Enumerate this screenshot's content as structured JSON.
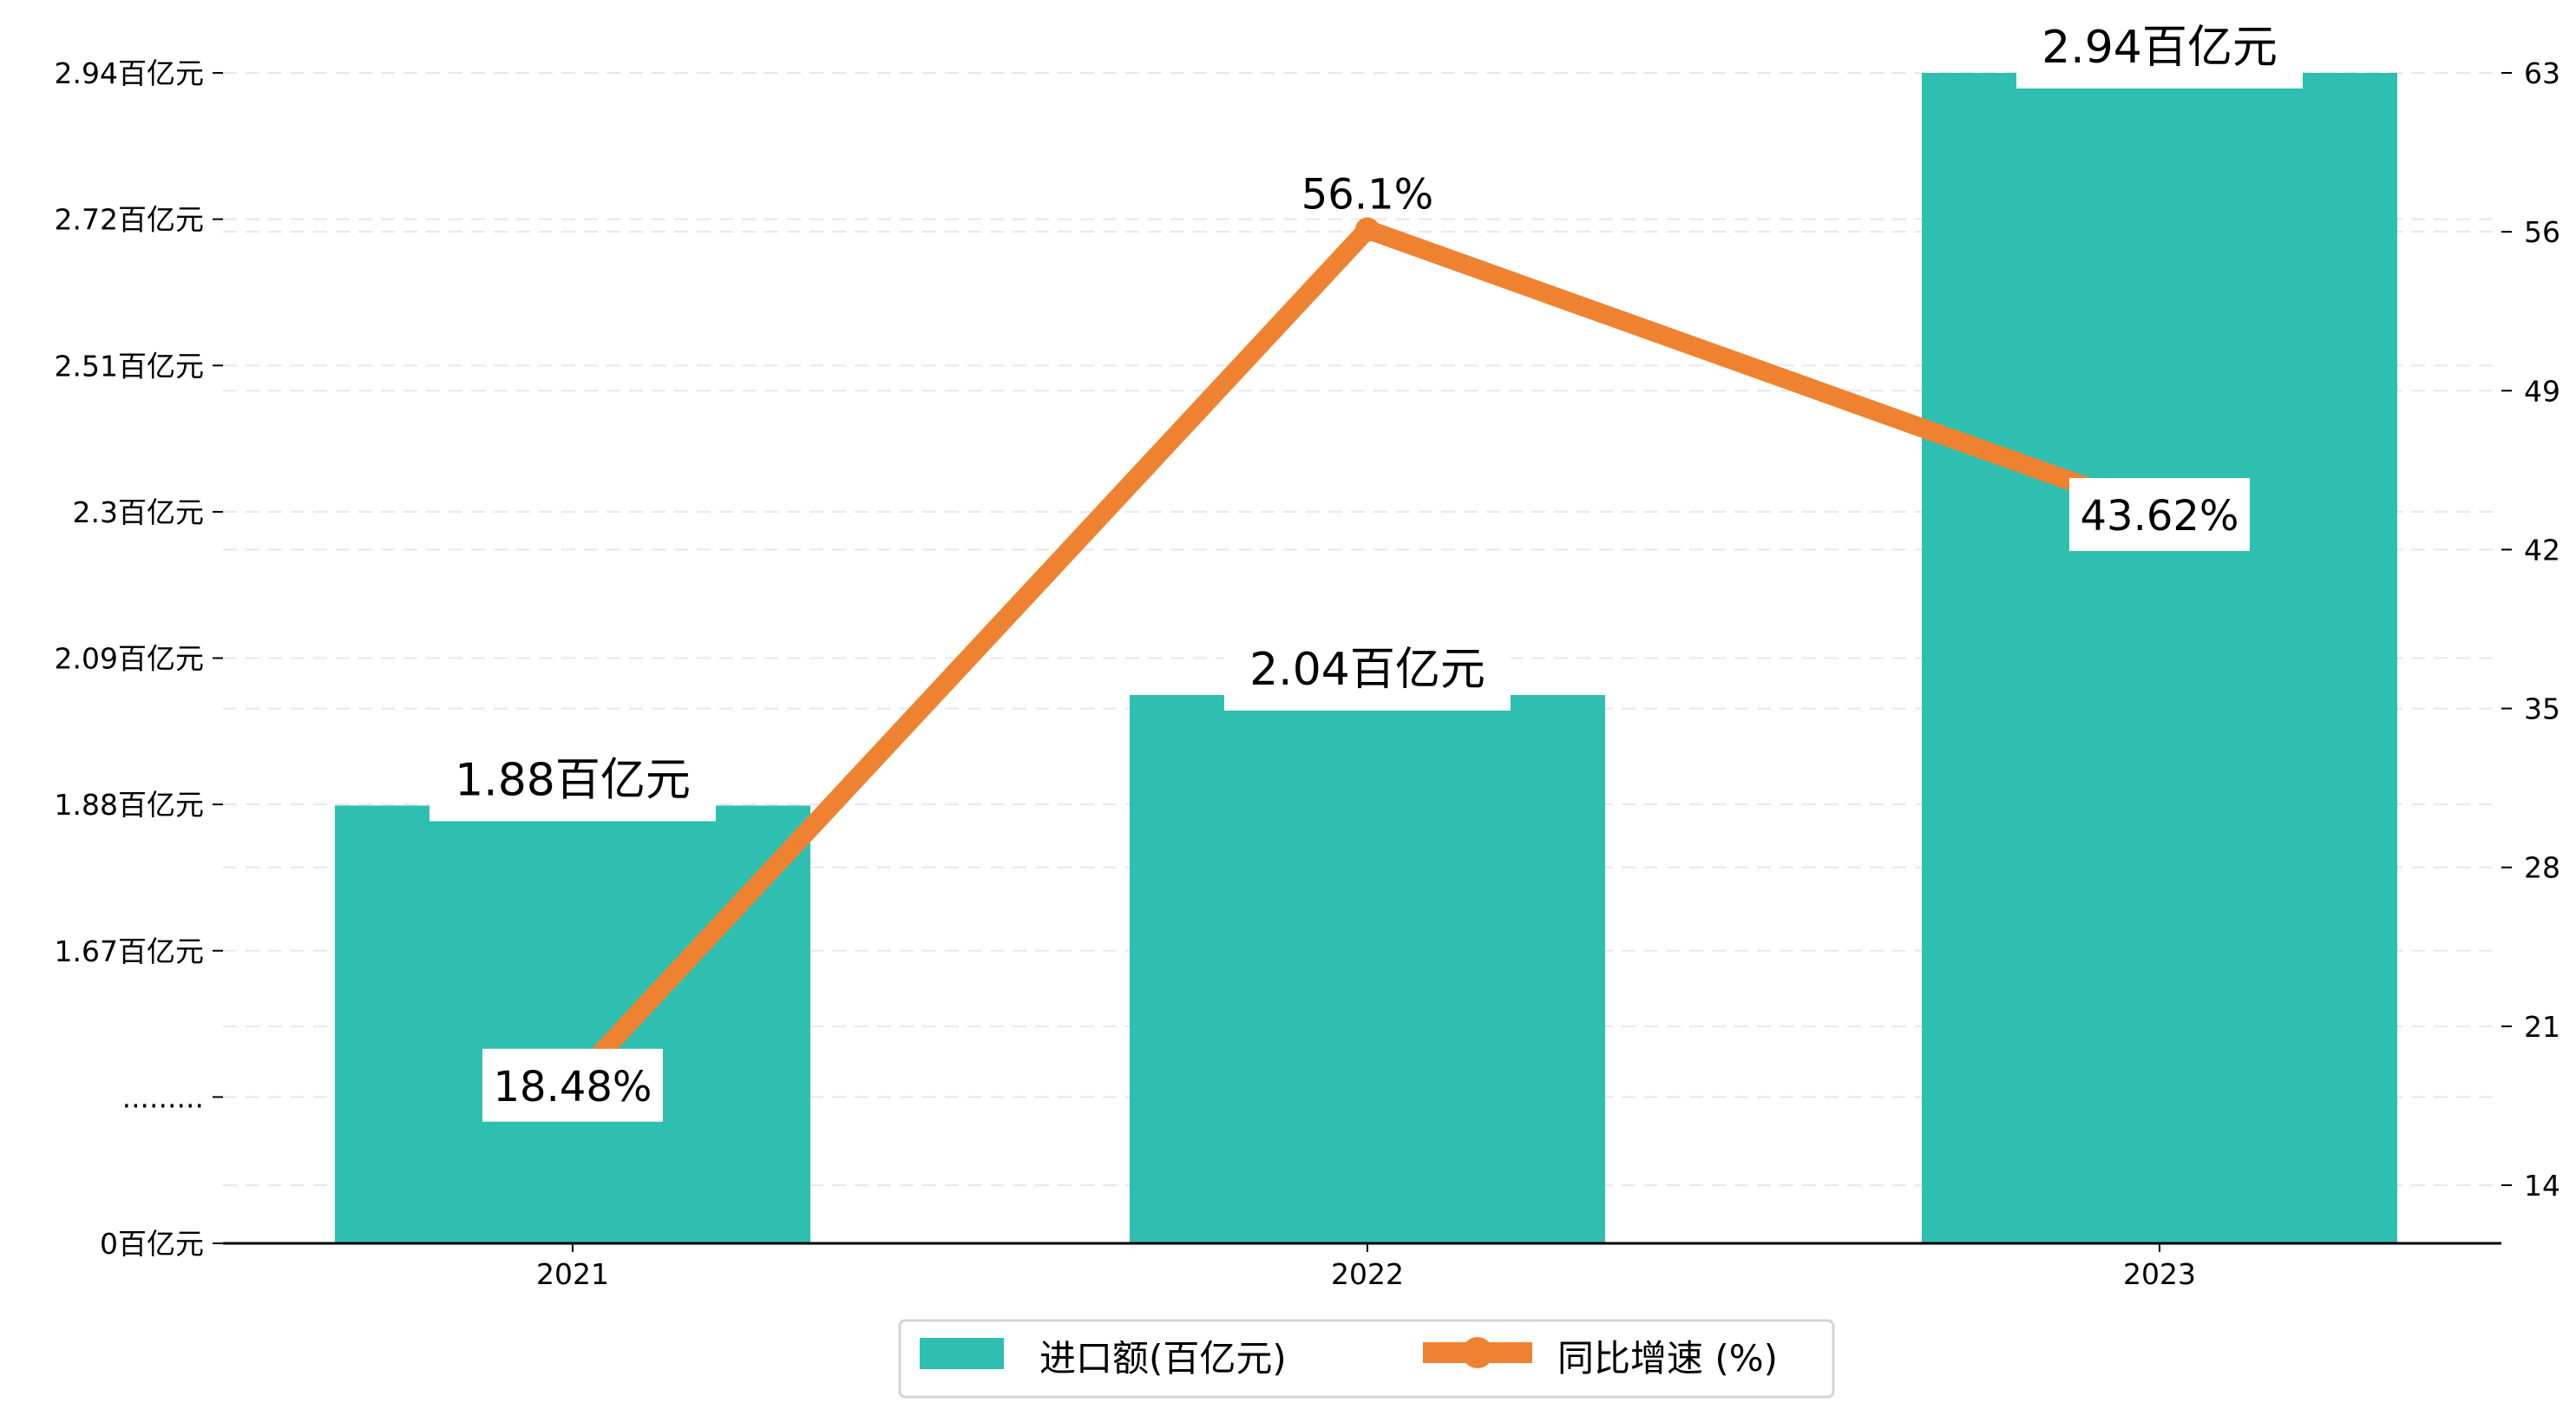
{
  "colors": {
    "bar": "#2fbfb1",
    "line": "#ef8230",
    "grid": "#e8e8e8"
  },
  "chart_data": {
    "type": "bar+line",
    "categories": [
      "2021",
      "2022",
      "2023"
    ],
    "series": [
      {
        "name": "进口额(百亿元)",
        "type": "bar",
        "axis": "left",
        "values": [
          1.88,
          2.04,
          2.94
        ],
        "labels": [
          "1.88百亿元",
          "2.04百亿元",
          "2.94百亿元"
        ]
      },
      {
        "name": "同比增速 (%)",
        "type": "line",
        "axis": "right",
        "values": [
          18.48,
          56.1,
          43.62
        ],
        "labels": [
          "18.48%",
          "56.1%",
          "43.62%"
        ]
      }
    ],
    "left_axis": {
      "tick_labels": [
        "0百亿元",
        ".........",
        "1.67百亿元",
        "1.88百亿元",
        "2.09百亿元",
        "2.3百亿元",
        "2.51百亿元",
        "2.72百亿元",
        "2.94百亿元"
      ],
      "tick_values": [
        0,
        null,
        1.67,
        1.88,
        2.09,
        2.3,
        2.51,
        2.72,
        2.94
      ],
      "broken": true
    },
    "right_axis": {
      "tick_labels": [
        "14",
        "21",
        "28",
        "35",
        "42",
        "49",
        "56",
        "63"
      ],
      "tick_values": [
        14,
        21,
        28,
        35,
        42,
        49,
        56,
        63
      ]
    },
    "legend": {
      "placement": "bottom-center",
      "entries": [
        "进口额(百亿元)",
        "同比增速 (%)"
      ]
    },
    "grid": true
  }
}
